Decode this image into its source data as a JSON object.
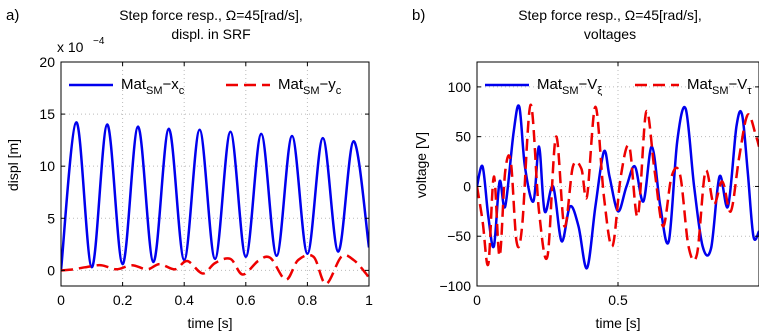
{
  "colors": {
    "series_x": "#0000ee",
    "series_y": "#ee0000",
    "axis": "#000000",
    "grid": "#bbbbbb"
  },
  "chart_data": [
    {
      "panel_label": "a)",
      "type": "line",
      "title_line1": "Step force resp., Ω=45[rad/s],",
      "title_line2": "displ. in SRF",
      "xlabel": "time [s]",
      "ylabel": "displ [m]",
      "exponent_prefix": "x 10",
      "exponent_power": "−4",
      "xlim": [
        0,
        1
      ],
      "ylim": [
        -1.5,
        20
      ],
      "xticks": [
        "0",
        "0.2",
        "0.4",
        "0.6",
        "0.8",
        "1"
      ],
      "xtick_values": [
        0,
        0.2,
        0.4,
        0.6,
        0.8,
        1
      ],
      "yticks": [
        "0",
        "5",
        "10",
        "15",
        "20"
      ],
      "ytick_values": [
        0,
        5,
        10,
        15,
        20
      ],
      "grid": true,
      "legend_position": "top",
      "series": [
        {
          "name_main": "Mat",
          "name_sub": "SM",
          "name_tail": "−x",
          "name_tail_sub": "c",
          "style": "solid",
          "x": [
            0.0,
            0.05,
            0.1,
            0.15,
            0.2,
            0.25,
            0.3,
            0.35,
            0.4,
            0.45,
            0.5,
            0.55,
            0.6,
            0.65,
            0.7,
            0.75,
            0.8,
            0.85,
            0.9,
            0.95,
            1.0
          ],
          "y": [
            0.0,
            14.2,
            0.3,
            14.0,
            0.6,
            13.8,
            0.8,
            13.6,
            1.0,
            13.5,
            1.1,
            13.3,
            1.3,
            13.1,
            1.4,
            12.9,
            1.6,
            12.7,
            1.8,
            12.4,
            2.2
          ]
        },
        {
          "name_main": "Mat",
          "name_sub": "SM",
          "name_tail": "−y",
          "name_tail_sub": "c",
          "style": "dashed",
          "x": [
            0.0,
            0.04,
            0.08,
            0.13,
            0.18,
            0.23,
            0.28,
            0.32,
            0.37,
            0.41,
            0.46,
            0.5,
            0.55,
            0.59,
            0.64,
            0.68,
            0.73,
            0.77,
            0.82,
            0.86,
            0.91,
            0.95,
            0.99,
            1.0
          ],
          "y": [
            0.0,
            0.1,
            0.3,
            0.5,
            0.1,
            0.5,
            0.1,
            0.6,
            0.1,
            0.9,
            -0.3,
            0.7,
            1.1,
            -0.4,
            0.9,
            1.2,
            -0.9,
            1.0,
            1.3,
            -1.3,
            1.3,
            1.0,
            -0.3,
            -0.8
          ]
        }
      ]
    },
    {
      "panel_label": "b)",
      "type": "line",
      "title_line1": "Step force resp., Ω=45[rad/s],",
      "title_line2": "voltages",
      "xlabel": "time [s]",
      "ylabel": "voltage [V]",
      "xlim": [
        0,
        1
      ],
      "ylim": [
        -100,
        125
      ],
      "xticks": [
        "0",
        "0.5"
      ],
      "xtick_values": [
        0,
        0.5
      ],
      "yticks": [
        "−100",
        "−50",
        "0",
        "50",
        "100"
      ],
      "ytick_values": [
        -100,
        -50,
        0,
        50,
        100
      ],
      "grid": true,
      "legend_position": "top",
      "series": [
        {
          "name_main": "Mat",
          "name_sub": "SM",
          "name_tail": "−V",
          "name_tail_sub": "ξ",
          "style": "solid",
          "x": [
            0.0,
            0.02,
            0.04,
            0.06,
            0.08,
            0.1,
            0.13,
            0.15,
            0.17,
            0.2,
            0.22,
            0.24,
            0.27,
            0.3,
            0.33,
            0.36,
            0.39,
            0.42,
            0.45,
            0.47,
            0.5,
            0.53,
            0.56,
            0.59,
            0.62,
            0.65,
            0.68,
            0.71,
            0.74,
            0.77,
            0.8,
            0.83,
            0.86,
            0.89,
            0.92,
            0.94,
            0.96,
            0.98,
            1.0
          ],
          "y": [
            0,
            20,
            -30,
            -60,
            5,
            -20,
            55,
            80,
            20,
            -15,
            40,
            -25,
            0,
            -55,
            -20,
            -40,
            -82,
            -20,
            35,
            10,
            -25,
            0,
            20,
            -15,
            40,
            -20,
            -55,
            45,
            78,
            0,
            -60,
            -62,
            10,
            -20,
            60,
            72,
            15,
            -50,
            -45
          ]
        },
        {
          "name_main": "Mat",
          "name_sub": "SM",
          "name_tail": "−V",
          "name_tail_sub": "τ",
          "style": "dashed",
          "x": [
            0.0,
            0.02,
            0.04,
            0.06,
            0.08,
            0.1,
            0.12,
            0.14,
            0.16,
            0.19,
            0.22,
            0.25,
            0.28,
            0.31,
            0.34,
            0.37,
            0.39,
            0.42,
            0.45,
            0.48,
            0.51,
            0.54,
            0.57,
            0.6,
            0.63,
            0.66,
            0.69,
            0.72,
            0.75,
            0.78,
            0.81,
            0.84,
            0.87,
            0.9,
            0.93,
            0.96,
            0.99,
            1.0
          ],
          "y": [
            0,
            -35,
            -78,
            10,
            -70,
            15,
            25,
            -55,
            -40,
            82,
            -25,
            -70,
            50,
            -40,
            20,
            18,
            -10,
            80,
            -10,
            -60,
            10,
            40,
            -30,
            75,
            15,
            -40,
            10,
            12,
            -60,
            -68,
            15,
            -18,
            5,
            -25,
            30,
            72,
            50,
            40
          ]
        }
      ]
    }
  ]
}
